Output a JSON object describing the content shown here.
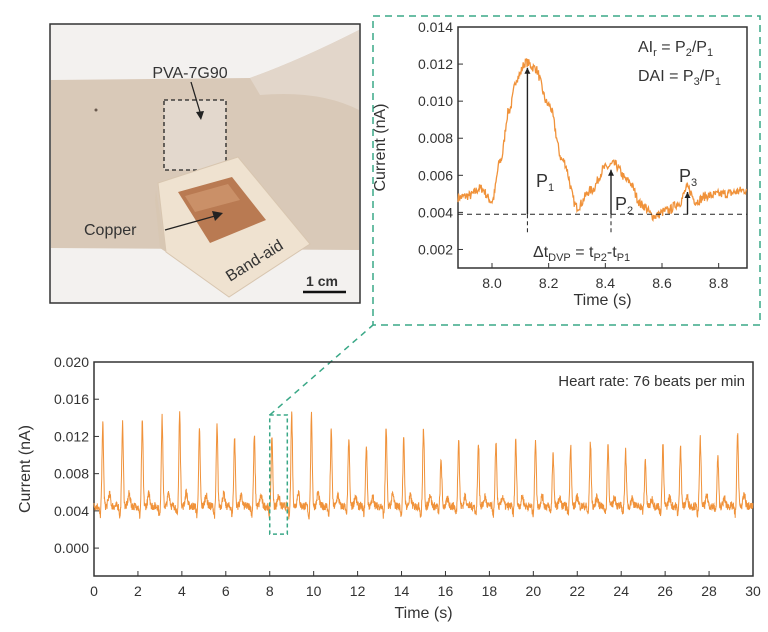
{
  "photo": {
    "label_film": "PVA-7G90",
    "label_copper": "Copper",
    "label_bandaid": "Band-aid",
    "scale_bar": "1 cm"
  },
  "colors": {
    "series": "#f0923a",
    "zoom_box": "#3aa887",
    "axis": "#333333"
  },
  "chart_data": [
    {
      "type": "line",
      "id": "inset",
      "xlabel": "Time (s)",
      "ylabel": "Current (nA)",
      "xlim": [
        7.88,
        8.9
      ],
      "ylim": [
        0.001,
        0.014
      ],
      "xticks": [
        "8.0",
        "8.2",
        "8.4",
        "8.6",
        "8.8"
      ],
      "yticks": [
        "0.002",
        "0.004",
        "0.006",
        "0.008",
        "0.010",
        "0.012",
        "0.014"
      ],
      "x": [
        7.88,
        7.92,
        7.96,
        8.0,
        8.03,
        8.06,
        8.09,
        8.12,
        8.15,
        8.2,
        8.25,
        8.3,
        8.35,
        8.4,
        8.43,
        8.48,
        8.53,
        8.57,
        8.62,
        8.66,
        8.69,
        8.72,
        8.76,
        8.82,
        8.9
      ],
      "y": [
        0.0048,
        0.0049,
        0.0053,
        0.0046,
        0.0068,
        0.0095,
        0.0113,
        0.0121,
        0.0118,
        0.0098,
        0.0068,
        0.0043,
        0.0052,
        0.0064,
        0.0066,
        0.0057,
        0.0044,
        0.0038,
        0.0041,
        0.0045,
        0.0053,
        0.0046,
        0.0049,
        0.005,
        0.0052
      ],
      "baseline": 0.0039,
      "annotations": {
        "formula_1": "AI",
        "formula_1_sub": "r",
        "formula_1_rest": " = P",
        "formula_1_sub2": "2",
        "formula_1_end": "/P",
        "formula_1_sub3": "1",
        "formula_2": "DAI = P",
        "formula_2_sub": "3",
        "formula_2_end": "/P",
        "formula_2_sub2": "1",
        "p1": "P",
        "p1_sub": "1",
        "p1_t": 8.125,
        "p1_v": 0.0118,
        "p2": "P",
        "p2_sub": "2",
        "p2_t": 8.42,
        "p2_v": 0.0063,
        "p3": "P",
        "p3_sub": "3",
        "p3_t": 8.69,
        "p3_v": 0.0051,
        "dt": "Δt",
        "dt_sub": "DVP",
        "dt_eq": " = t",
        "dt_sub2": "P2",
        "dt_minus": "-t",
        "dt_sub3": "P1"
      }
    },
    {
      "type": "line",
      "id": "main",
      "xlabel": "Time (s)",
      "ylabel": "Current (nA)",
      "xlim": [
        0,
        30
      ],
      "ylim": [
        -0.003,
        0.02
      ],
      "xticks": [
        "0",
        "2",
        "4",
        "6",
        "8",
        "10",
        "12",
        "14",
        "16",
        "18",
        "20",
        "22",
        "24",
        "26",
        "28",
        "30"
      ],
      "yticks": [
        "0.000",
        "0.004",
        "0.008",
        "0.012",
        "0.016",
        "0.020"
      ],
      "annotation": "Heart rate: 76 beats per min",
      "baseline": 0.0045,
      "beat_times": [
        0.4,
        1.3,
        2.2,
        3.1,
        3.9,
        4.8,
        5.6,
        6.4,
        7.3,
        8.1,
        9.0,
        9.9,
        10.8,
        11.6,
        12.4,
        13.3,
        14.1,
        15.0,
        15.8,
        16.6,
        17.5,
        18.3,
        19.2,
        20.1,
        20.9,
        21.7,
        22.6,
        23.4,
        24.2,
        25.1,
        25.9,
        26.7,
        27.6,
        28.4,
        29.3
      ],
      "peak_values": [
        0.0133,
        0.0133,
        0.0135,
        0.014,
        0.0145,
        0.0125,
        0.013,
        0.0118,
        0.012,
        0.0121,
        0.0145,
        0.0142,
        0.0125,
        0.0117,
        0.011,
        0.0128,
        0.0117,
        0.0128,
        0.0095,
        0.0118,
        0.0112,
        0.0115,
        0.0115,
        0.0117,
        0.0103,
        0.0112,
        0.0113,
        0.0112,
        0.0105,
        0.0095,
        0.011,
        0.0112,
        0.0118,
        0.0098,
        0.0125
      ],
      "zoom_region": {
        "x": [
          8.0,
          8.8
        ],
        "y": [
          0.0015,
          0.0143
        ]
      }
    }
  ]
}
